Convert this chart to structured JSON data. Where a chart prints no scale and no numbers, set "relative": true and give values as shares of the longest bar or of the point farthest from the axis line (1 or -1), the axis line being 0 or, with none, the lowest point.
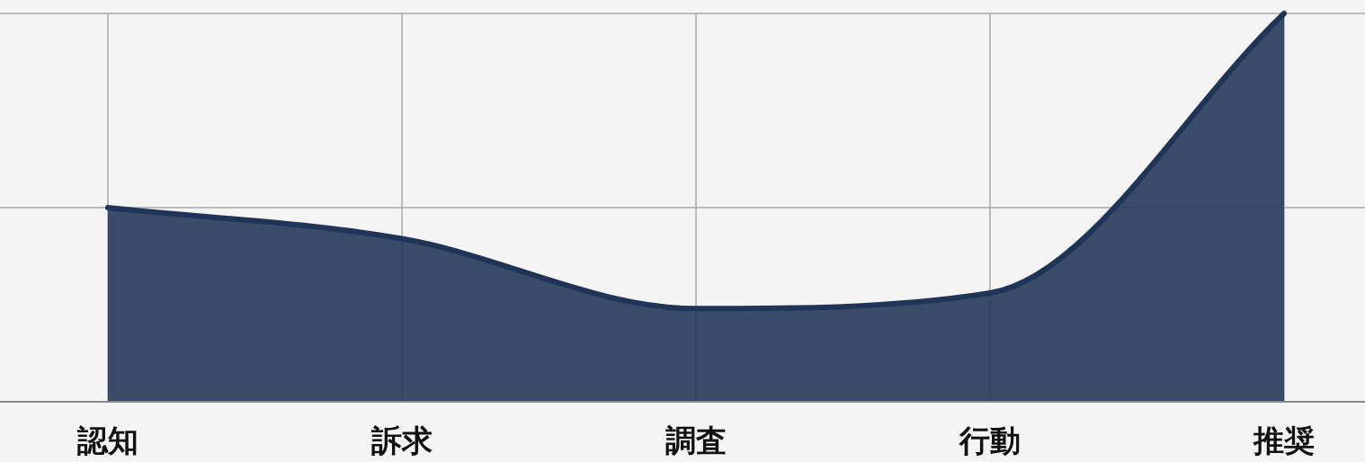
{
  "chart_data": {
    "type": "area",
    "categories": [
      "認知",
      "訴求",
      "調査",
      "行動",
      "推奨"
    ],
    "values": [
      0.5,
      0.42,
      0.24,
      0.28,
      1
    ],
    "color": "#1f3456",
    "relative": true,
    "grid": true
  }
}
